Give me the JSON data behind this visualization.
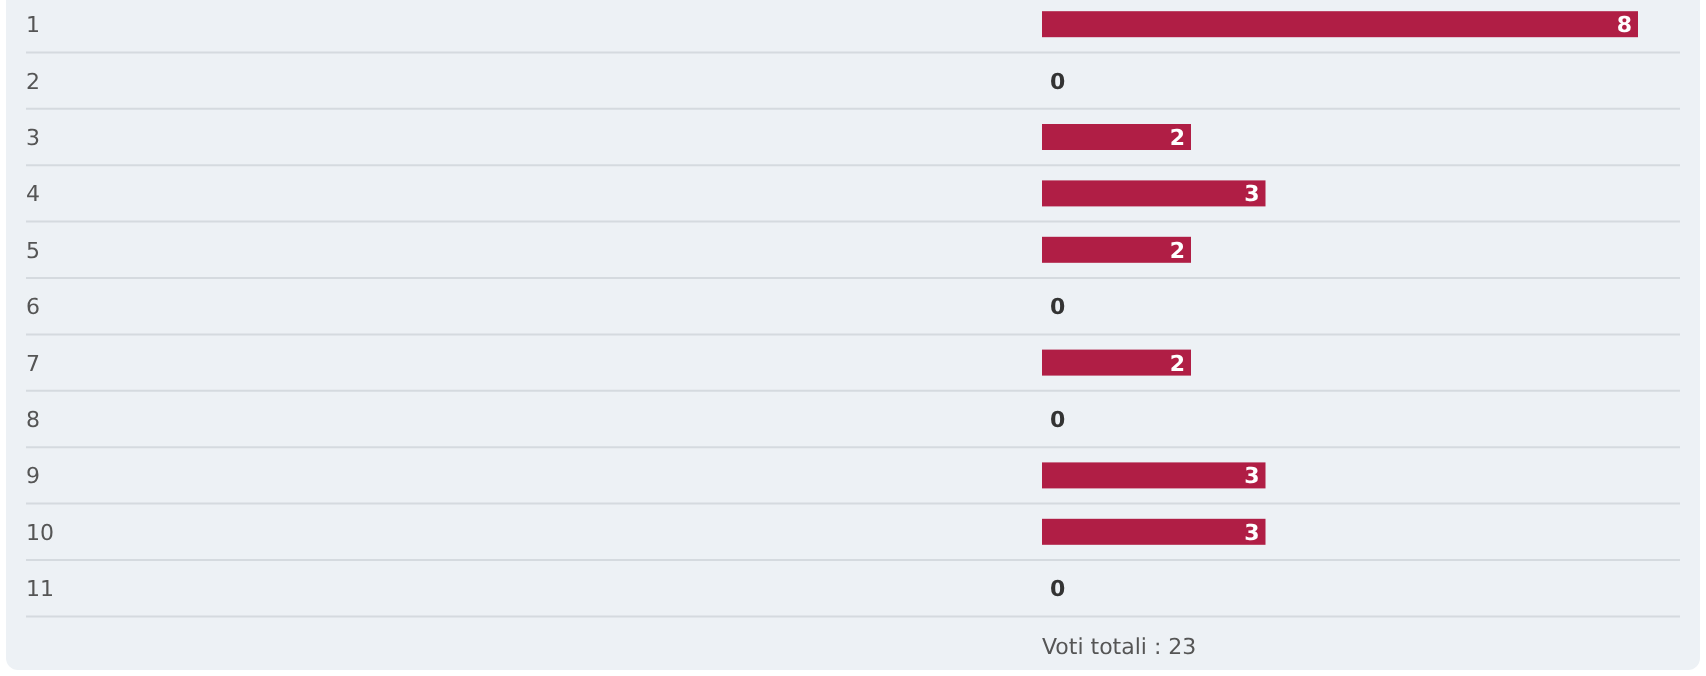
{
  "chart_data": {
    "type": "bar",
    "orientation": "horizontal",
    "categories": [
      "1",
      "2",
      "3",
      "4",
      "5",
      "6",
      "7",
      "8",
      "9",
      "10",
      "11"
    ],
    "values": [
      8,
      0,
      2,
      3,
      2,
      0,
      2,
      0,
      3,
      3,
      0
    ],
    "color": "#b01e45",
    "data_labels": true,
    "annotations": [
      "Voti totali : 23"
    ]
  }
}
